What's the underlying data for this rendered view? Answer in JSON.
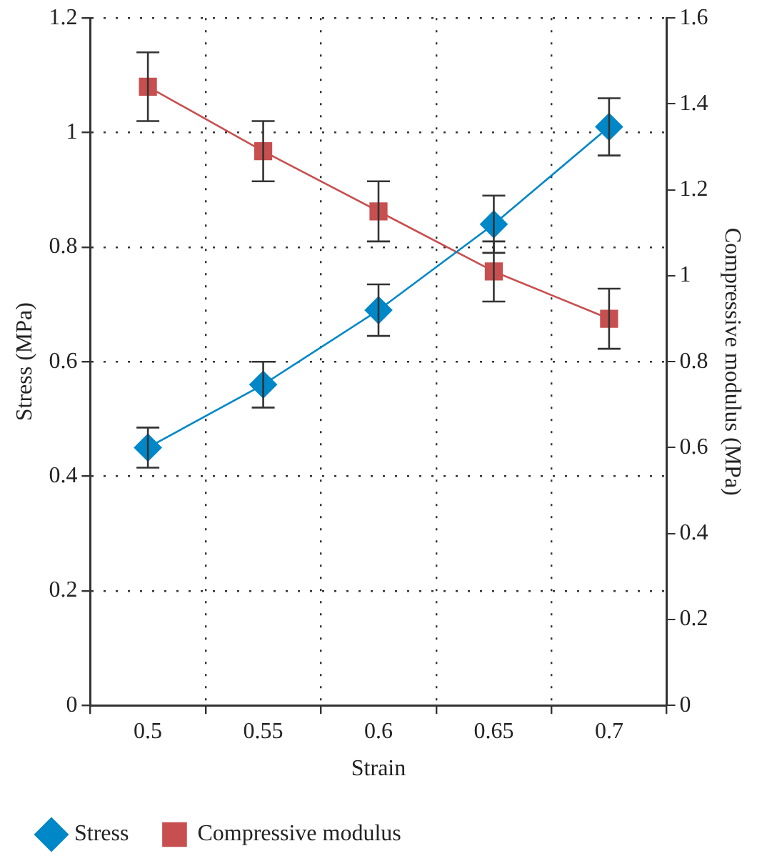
{
  "chart_data": {
    "type": "line",
    "xlabel": "Strain",
    "ylabel": "Stress (MPa)",
    "y2label": "Compressive modulus (MPa)",
    "categories": [
      "0.5",
      "0.55",
      "0.6",
      "0.65",
      "0.7"
    ],
    "series": [
      {
        "name": "Stress",
        "color": "#0087c8",
        "marker": "diamond",
        "values": [
          0.45,
          0.56,
          0.69,
          0.84,
          1.01
        ],
        "errors": [
          0.035,
          0.04,
          0.045,
          0.05,
          0.05
        ]
      },
      {
        "name": "Compressive modulus",
        "color": "#c84f4f",
        "marker": "square",
        "axis": "y2",
        "values": [
          1.44,
          1.29,
          1.15,
          1.01,
          0.9
        ],
        "errors": [
          0.08,
          0.07,
          0.07,
          0.07,
          0.07
        ]
      }
    ],
    "ylim": [
      0,
      1.2
    ],
    "yticks": [
      0,
      0.2,
      0.4,
      0.6,
      0.8,
      1,
      1.2
    ],
    "y2lim": [
      0,
      1.6
    ],
    "y2ticks": [
      0,
      0.2,
      0.4,
      0.6,
      0.8,
      1,
      1.2,
      1.4,
      1.6
    ],
    "grid": true,
    "legend": "bottom",
    "line_style": "solid"
  }
}
